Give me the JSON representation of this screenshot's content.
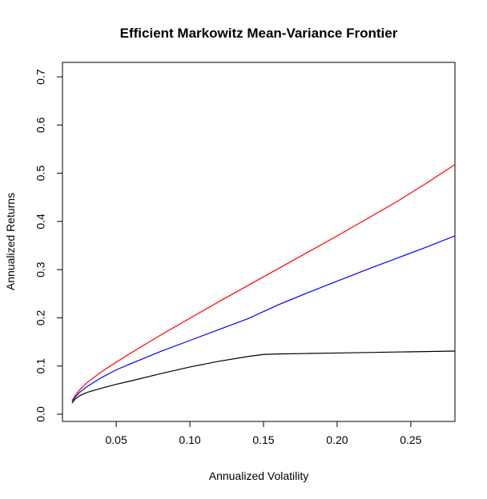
{
  "chart_data": {
    "type": "line",
    "title": "Efficient Markowitz Mean-Variance Frontier",
    "xlabel": "Annualized Volatility",
    "ylabel": "Annualized Returns",
    "xlim": [
      0.0135,
      0.28
    ],
    "ylim": [
      -0.015,
      0.73
    ],
    "x_ticks": [
      0.05,
      0.1,
      0.15,
      0.2,
      0.25
    ],
    "x_tick_labels": [
      "0.05",
      "0.10",
      "0.15",
      "0.20",
      "0.25"
    ],
    "y_ticks": [
      0.0,
      0.1,
      0.2,
      0.3,
      0.4,
      0.5,
      0.6,
      0.7
    ],
    "y_tick_labels": [
      "0.0",
      "0.1",
      "0.2",
      "0.3",
      "0.4",
      "0.5",
      "0.6",
      "0.7"
    ],
    "grid": false,
    "legend": "none",
    "series": [
      {
        "color": "#ff0000",
        "x": [
          0.02,
          0.022,
          0.025,
          0.03,
          0.04,
          0.05,
          0.06,
          0.08,
          0.1,
          0.12,
          0.14,
          0.16,
          0.18,
          0.2,
          0.22,
          0.24,
          0.26,
          0.28
        ],
        "y": [
          0.028,
          0.038,
          0.05,
          0.065,
          0.088,
          0.108,
          0.127,
          0.164,
          0.199,
          0.234,
          0.268,
          0.302,
          0.336,
          0.37,
          0.405,
          0.44,
          0.478,
          0.518
        ]
      },
      {
        "color": "#0000ff",
        "x": [
          0.02,
          0.022,
          0.025,
          0.03,
          0.04,
          0.05,
          0.06,
          0.08,
          0.1,
          0.12,
          0.14,
          0.16,
          0.18,
          0.2,
          0.22,
          0.24,
          0.26,
          0.28
        ],
        "y": [
          0.027,
          0.035,
          0.045,
          0.057,
          0.076,
          0.092,
          0.105,
          0.13,
          0.153,
          0.176,
          0.199,
          0.227,
          0.252,
          0.276,
          0.3,
          0.323,
          0.346,
          0.37
        ]
      },
      {
        "color": "#000000",
        "x": [
          0.02,
          0.022,
          0.025,
          0.03,
          0.04,
          0.05,
          0.06,
          0.08,
          0.1,
          0.12,
          0.14,
          0.15,
          0.16,
          0.18,
          0.2,
          0.22,
          0.24,
          0.26,
          0.28
        ],
        "y": [
          0.023,
          0.031,
          0.038,
          0.045,
          0.054,
          0.062,
          0.069,
          0.084,
          0.098,
          0.11,
          0.12,
          0.124,
          0.125,
          0.126,
          0.127,
          0.128,
          0.129,
          0.13,
          0.131
        ]
      }
    ]
  }
}
